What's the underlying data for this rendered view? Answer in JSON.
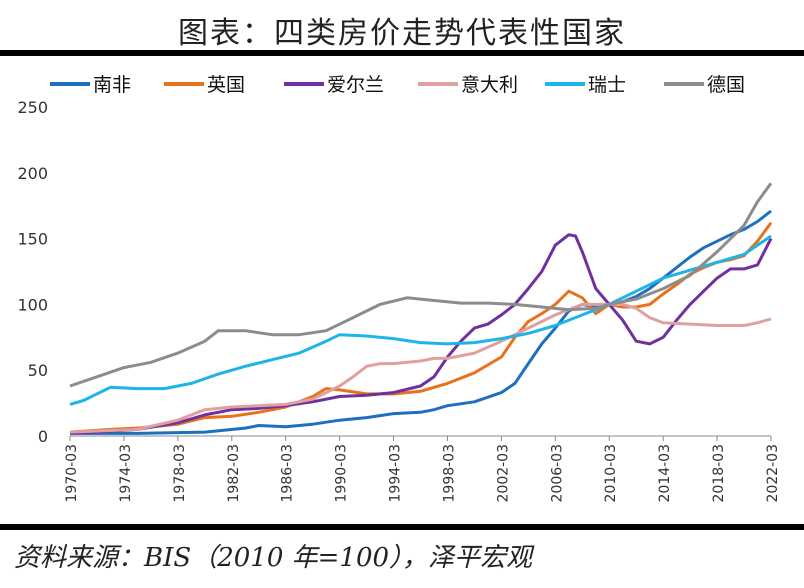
{
  "title": "图表：四类房价走势代表性国家",
  "source": "资料来源：BIS（2010 年=100），泽平宏观",
  "chart_data": {
    "type": "line",
    "ylim": [
      0,
      250
    ],
    "yticks": [
      "0",
      "50",
      "100",
      "150",
      "200",
      "250"
    ],
    "xticks": [
      "1970-03",
      "1974-03",
      "1978-03",
      "1982-03",
      "1986-03",
      "1990-03",
      "1994-03",
      "1998-03",
      "2002-03",
      "2006-03",
      "2010-03",
      "2014-03",
      "2018-03",
      "2022-03"
    ],
    "xlim": [
      1970,
      2022
    ],
    "grid": false,
    "legend": "top",
    "series": [
      {
        "name": "南非",
        "color": "#1f6fbf",
        "points": [
          [
            1970,
            2
          ],
          [
            1975,
            2
          ],
          [
            1980,
            3
          ],
          [
            1983,
            6
          ],
          [
            1984,
            8
          ],
          [
            1986,
            7
          ],
          [
            1988,
            9
          ],
          [
            1990,
            12
          ],
          [
            1992,
            14
          ],
          [
            1994,
            17
          ],
          [
            1996,
            18
          ],
          [
            1997,
            20
          ],
          [
            1998,
            23
          ],
          [
            2000,
            26
          ],
          [
            2002,
            33
          ],
          [
            2003,
            40
          ],
          [
            2004,
            55
          ],
          [
            2005,
            70
          ],
          [
            2006,
            82
          ],
          [
            2007,
            95
          ],
          [
            2008,
            100
          ],
          [
            2009,
            98
          ],
          [
            2010,
            100
          ],
          [
            2011,
            102
          ],
          [
            2012,
            106
          ],
          [
            2013,
            112
          ],
          [
            2014,
            120
          ],
          [
            2015,
            128
          ],
          [
            2016,
            136
          ],
          [
            2017,
            143
          ],
          [
            2018,
            148
          ],
          [
            2019,
            153
          ],
          [
            2020,
            157
          ],
          [
            2021,
            163
          ],
          [
            2022,
            171
          ]
        ]
      },
      {
        "name": "英国",
        "color": "#e8721c",
        "points": [
          [
            1970,
            3
          ],
          [
            1973,
            5
          ],
          [
            1975,
            6
          ],
          [
            1978,
            9
          ],
          [
            1980,
            14
          ],
          [
            1982,
            15
          ],
          [
            1984,
            18
          ],
          [
            1986,
            22
          ],
          [
            1988,
            30
          ],
          [
            1989,
            36
          ],
          [
            1990,
            35
          ],
          [
            1992,
            32
          ],
          [
            1994,
            32
          ],
          [
            1995,
            33
          ],
          [
            1996,
            34
          ],
          [
            1998,
            40
          ],
          [
            2000,
            48
          ],
          [
            2002,
            60
          ],
          [
            2003,
            75
          ],
          [
            2004,
            87
          ],
          [
            2005,
            93
          ],
          [
            2006,
            100
          ],
          [
            2007,
            110
          ],
          [
            2008,
            105
          ],
          [
            2009,
            93
          ],
          [
            2010,
            100
          ],
          [
            2011,
            98
          ],
          [
            2012,
            98
          ],
          [
            2013,
            100
          ],
          [
            2014,
            108
          ],
          [
            2015,
            115
          ],
          [
            2016,
            123
          ],
          [
            2017,
            128
          ],
          [
            2018,
            132
          ],
          [
            2019,
            134
          ],
          [
            2020,
            137
          ],
          [
            2021,
            148
          ],
          [
            2022,
            162
          ]
        ]
      },
      {
        "name": "爱尔兰",
        "color": "#7030a0",
        "points": [
          [
            1970,
            2
          ],
          [
            1975,
            5
          ],
          [
            1978,
            10
          ],
          [
            1980,
            16
          ],
          [
            1982,
            20
          ],
          [
            1984,
            21
          ],
          [
            1986,
            23
          ],
          [
            1988,
            26
          ],
          [
            1990,
            30
          ],
          [
            1992,
            31
          ],
          [
            1994,
            33
          ],
          [
            1996,
            38
          ],
          [
            1997,
            45
          ],
          [
            1998,
            60
          ],
          [
            1999,
            72
          ],
          [
            2000,
            82
          ],
          [
            2001,
            85
          ],
          [
            2002,
            92
          ],
          [
            2003,
            100
          ],
          [
            2004,
            112
          ],
          [
            2005,
            125
          ],
          [
            2006,
            145
          ],
          [
            2007,
            153
          ],
          [
            2007.5,
            152
          ],
          [
            2008,
            140
          ],
          [
            2009,
            112
          ],
          [
            2010,
            100
          ],
          [
            2011,
            88
          ],
          [
            2012,
            72
          ],
          [
            2013,
            70
          ],
          [
            2014,
            75
          ],
          [
            2015,
            88
          ],
          [
            2016,
            100
          ],
          [
            2017,
            110
          ],
          [
            2018,
            120
          ],
          [
            2019,
            127
          ],
          [
            2020,
            127
          ],
          [
            2021,
            130
          ],
          [
            2022,
            150
          ]
        ]
      },
      {
        "name": "意大利",
        "color": "#e0a0a0",
        "points": [
          [
            1970,
            3
          ],
          [
            1975,
            5
          ],
          [
            1978,
            12
          ],
          [
            1980,
            20
          ],
          [
            1982,
            22
          ],
          [
            1984,
            23
          ],
          [
            1986,
            24
          ],
          [
            1988,
            28
          ],
          [
            1990,
            38
          ],
          [
            1991,
            45
          ],
          [
            1992,
            53
          ],
          [
            1993,
            55
          ],
          [
            1994,
            55
          ],
          [
            1996,
            57
          ],
          [
            1997,
            59
          ],
          [
            1998,
            59
          ],
          [
            2000,
            63
          ],
          [
            2002,
            72
          ],
          [
            2004,
            82
          ],
          [
            2006,
            92
          ],
          [
            2008,
            100
          ],
          [
            2010,
            100
          ],
          [
            2011,
            100
          ],
          [
            2012,
            97
          ],
          [
            2013,
            90
          ],
          [
            2014,
            86
          ],
          [
            2016,
            85
          ],
          [
            2018,
            84
          ],
          [
            2020,
            84
          ],
          [
            2021,
            86
          ],
          [
            2022,
            89
          ]
        ]
      },
      {
        "name": "瑞士",
        "color": "#1fb4e8",
        "points": [
          [
            1970,
            24
          ],
          [
            1971,
            27
          ],
          [
            1973,
            37
          ],
          [
            1975,
            36
          ],
          [
            1977,
            36
          ],
          [
            1979,
            40
          ],
          [
            1981,
            47
          ],
          [
            1983,
            53
          ],
          [
            1985,
            58
          ],
          [
            1987,
            63
          ],
          [
            1989,
            72
          ],
          [
            1990,
            77
          ],
          [
            1992,
            76
          ],
          [
            1994,
            74
          ],
          [
            1996,
            71
          ],
          [
            1998,
            70
          ],
          [
            2000,
            71
          ],
          [
            2002,
            74
          ],
          [
            2004,
            78
          ],
          [
            2006,
            84
          ],
          [
            2008,
            92
          ],
          [
            2010,
            100
          ],
          [
            2012,
            110
          ],
          [
            2014,
            120
          ],
          [
            2016,
            126
          ],
          [
            2018,
            132
          ],
          [
            2020,
            138
          ],
          [
            2022,
            152
          ]
        ]
      },
      {
        "name": "德国",
        "color": "#8c8c8c",
        "points": [
          [
            1970,
            38
          ],
          [
            1972,
            45
          ],
          [
            1974,
            52
          ],
          [
            1976,
            56
          ],
          [
            1978,
            63
          ],
          [
            1980,
            72
          ],
          [
            1981,
            80
          ],
          [
            1983,
            80
          ],
          [
            1985,
            77
          ],
          [
            1987,
            77
          ],
          [
            1989,
            80
          ],
          [
            1991,
            90
          ],
          [
            1993,
            100
          ],
          [
            1995,
            105
          ],
          [
            1997,
            103
          ],
          [
            1999,
            101
          ],
          [
            2001,
            101
          ],
          [
            2003,
            100
          ],
          [
            2005,
            98
          ],
          [
            2007,
            96
          ],
          [
            2009,
            97
          ],
          [
            2010,
            100
          ],
          [
            2012,
            104
          ],
          [
            2014,
            112
          ],
          [
            2016,
            122
          ],
          [
            2018,
            140
          ],
          [
            2019,
            150
          ],
          [
            2020,
            160
          ],
          [
            2021,
            178
          ],
          [
            2022,
            192
          ]
        ]
      }
    ]
  }
}
